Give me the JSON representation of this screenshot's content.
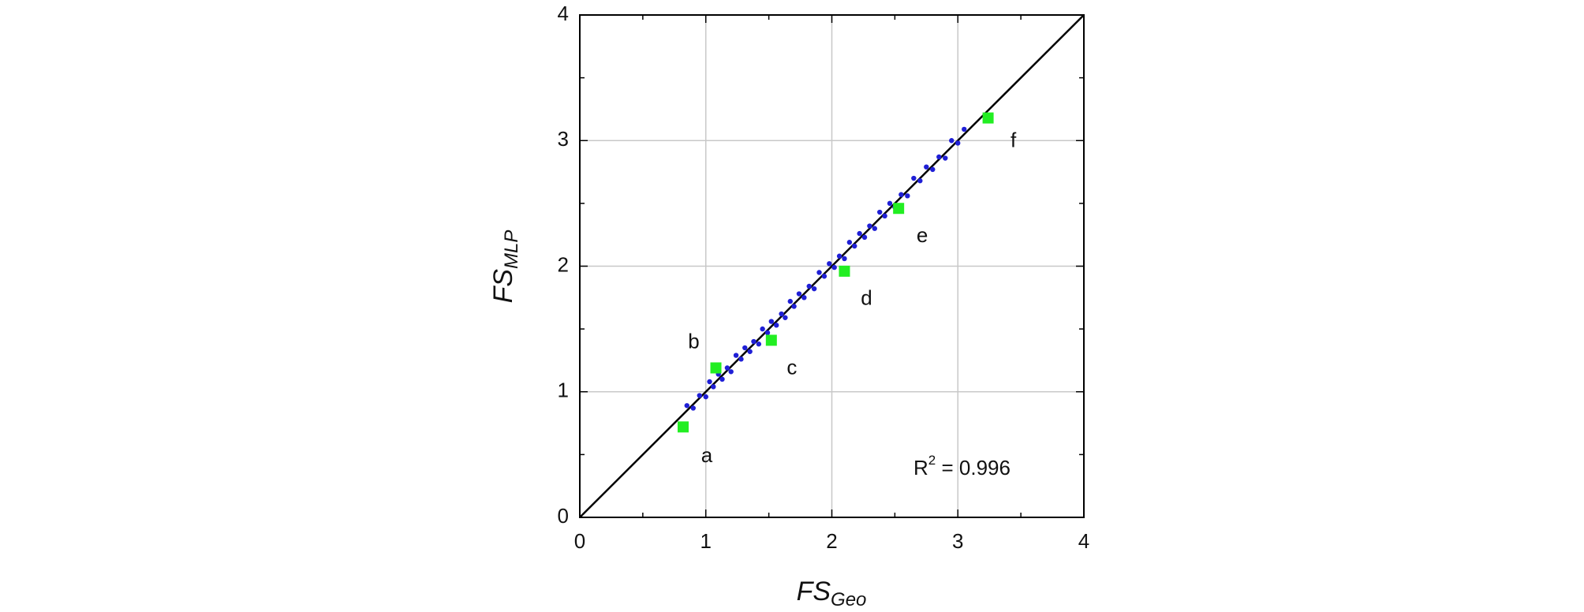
{
  "chart_data": {
    "type": "scatter",
    "x_label": {
      "text": "FS",
      "sub": "Geo"
    },
    "y_label": {
      "text": "FS",
      "sub": "MLP"
    },
    "annotation": {
      "base": "R",
      "sup": "2",
      "rest": " = 0.996"
    },
    "xlim": [
      0,
      4
    ],
    "ylim": [
      0,
      4
    ],
    "xticks": [
      0,
      1,
      2,
      3,
      4
    ],
    "yticks": [
      0,
      1,
      2,
      3,
      4
    ],
    "minor_xticks": [
      0.5,
      1.5,
      2.5,
      3.5
    ],
    "minor_yticks": [
      0.5,
      1.5,
      2.5,
      3.5
    ],
    "grid": true,
    "diagonal": true,
    "series": [
      {
        "color": "#1f1fd6",
        "marker": "circle",
        "x": [
          0.85,
          0.9,
          0.95,
          1.0,
          1.03,
          1.06,
          1.1,
          1.13,
          1.17,
          1.2,
          1.24,
          1.28,
          1.31,
          1.35,
          1.38,
          1.42,
          1.45,
          1.49,
          1.52,
          1.56,
          1.6,
          1.63,
          1.67,
          1.7,
          1.74,
          1.78,
          1.82,
          1.86,
          1.9,
          1.94,
          1.98,
          2.02,
          2.06,
          2.1,
          2.14,
          2.18,
          2.22,
          2.26,
          2.3,
          2.34,
          2.38,
          2.42,
          2.46,
          2.5,
          2.55,
          2.6,
          2.65,
          2.7,
          2.75,
          2.8,
          2.85,
          2.9,
          2.95,
          3.0,
          3.05
        ],
        "values": [
          0.89,
          0.87,
          0.97,
          0.96,
          1.08,
          1.04,
          1.14,
          1.1,
          1.19,
          1.16,
          1.29,
          1.26,
          1.35,
          1.32,
          1.4,
          1.38,
          1.5,
          1.47,
          1.56,
          1.53,
          1.62,
          1.59,
          1.72,
          1.68,
          1.78,
          1.75,
          1.84,
          1.82,
          1.95,
          1.92,
          2.02,
          1.99,
          2.08,
          2.06,
          2.19,
          2.16,
          2.26,
          2.23,
          2.32,
          2.3,
          2.43,
          2.4,
          2.5,
          2.47,
          2.57,
          2.56,
          2.7,
          2.68,
          2.79,
          2.77,
          2.87,
          2.86,
          3.0,
          2.98,
          3.09
        ]
      },
      {
        "color": "#22ee22",
        "marker": "square",
        "x": [
          0.82,
          1.08,
          1.52,
          2.1,
          2.53,
          3.24
        ],
        "values": [
          0.72,
          1.19,
          1.41,
          1.96,
          2.46,
          3.18
        ],
        "labels": [
          "a",
          "b",
          "c",
          "d",
          "e",
          "f"
        ]
      }
    ]
  }
}
